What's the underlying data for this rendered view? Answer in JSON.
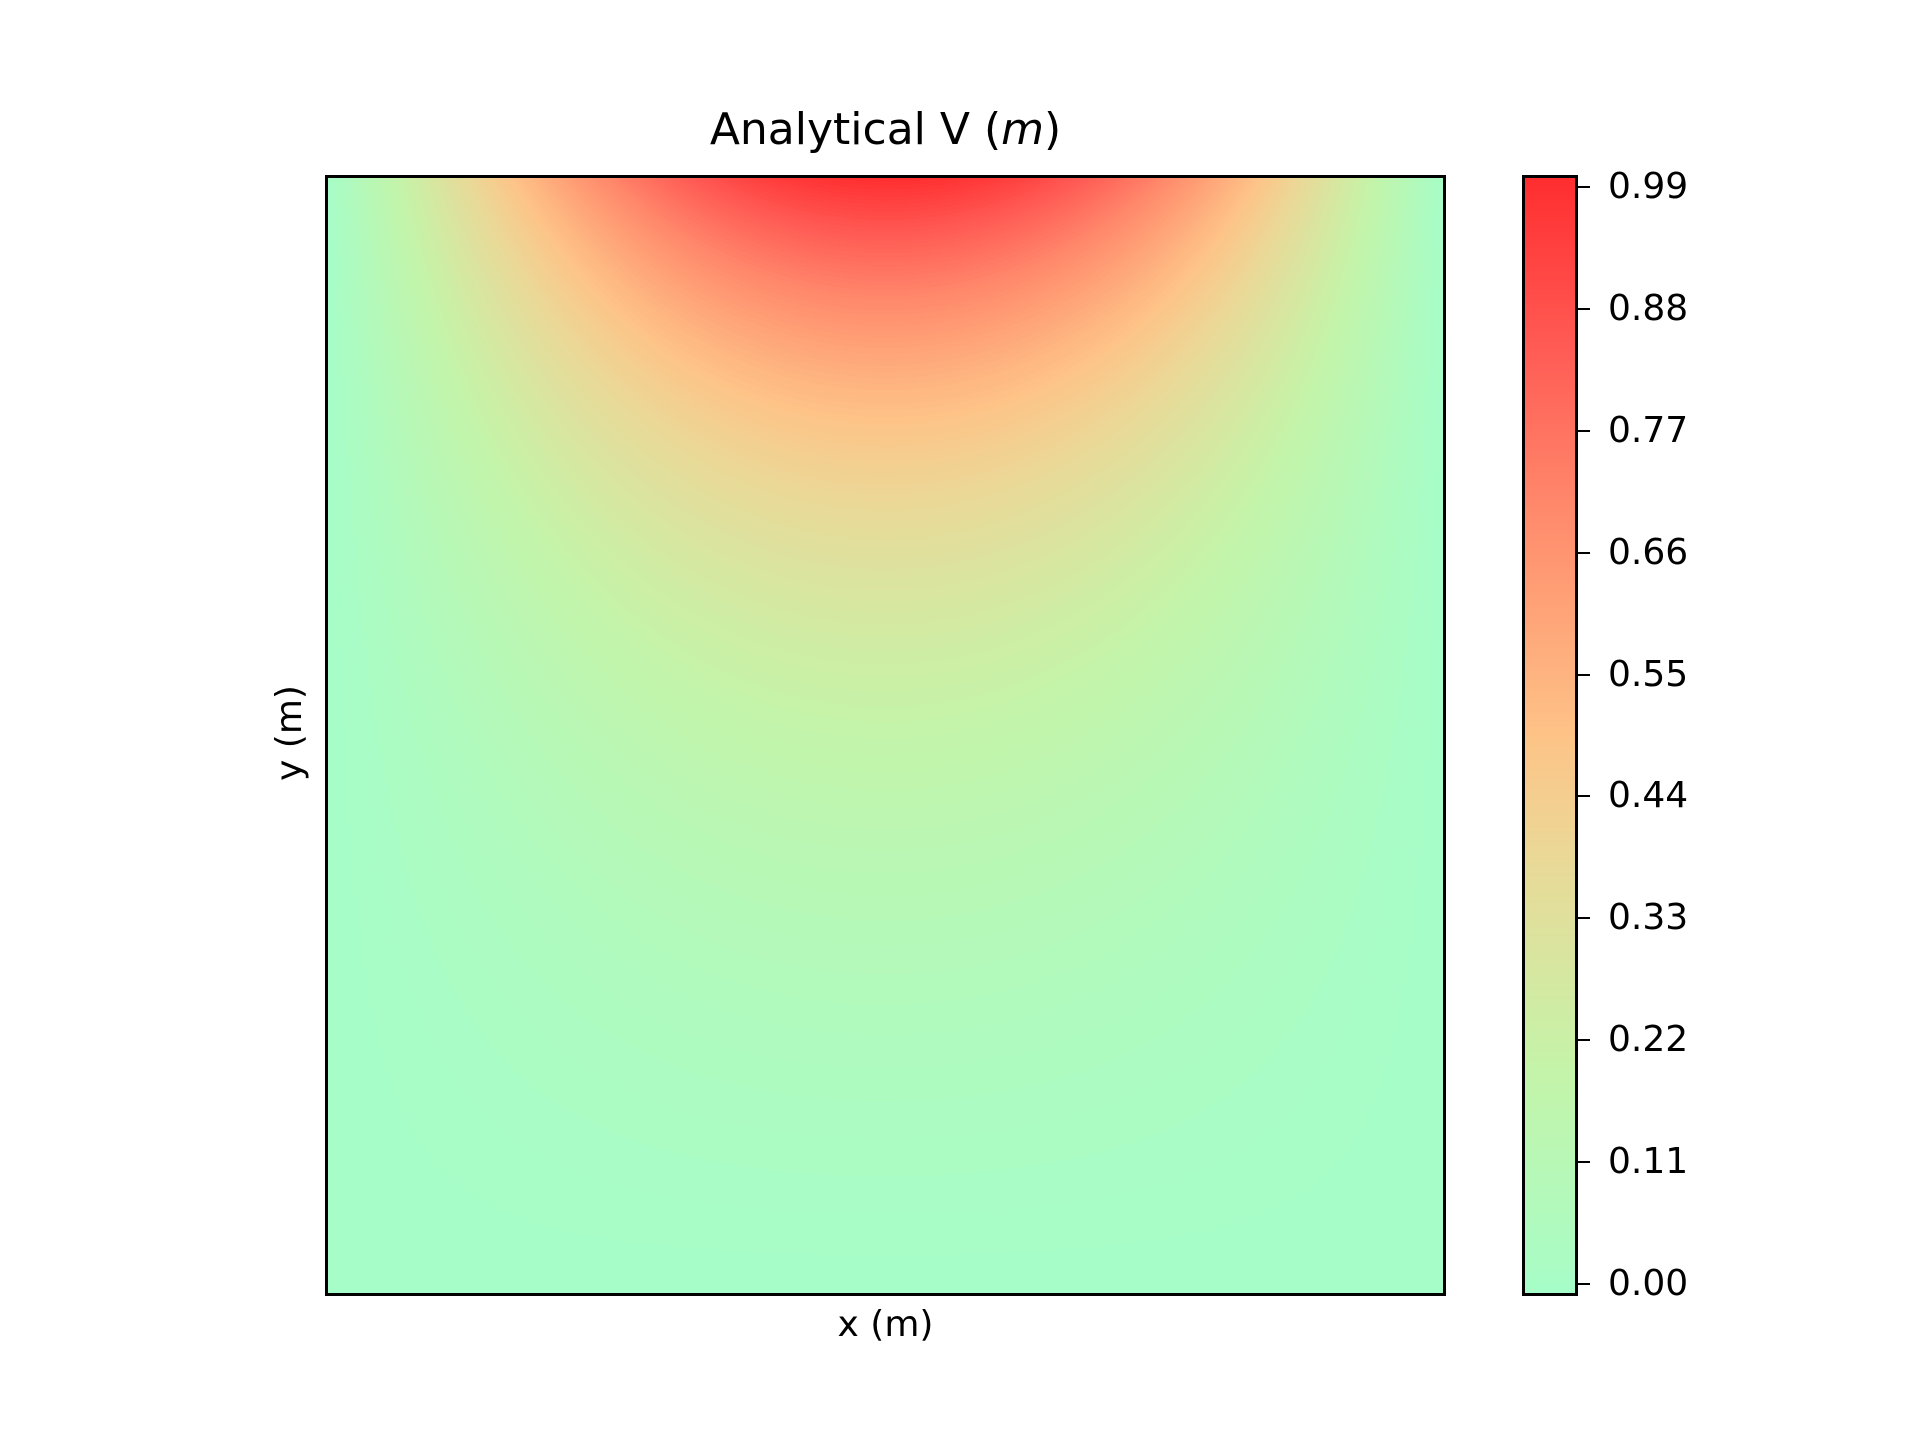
{
  "chart_data": {
    "type": "heatmap",
    "title": "Analytical V",
    "title_unit": "m",
    "xlabel": "x (m)",
    "ylabel": "y (m)",
    "x_ticks_shown": false,
    "y_ticks_shown": false,
    "grid": false,
    "field": "V(x, y) = sin(pi x) sinh(pi y) / sinh(pi), x in [0,1], y in [0,1], max ≈ 1 at top center",
    "colorbar": {
      "range": [
        0.0,
        0.99
      ],
      "ticks": [
        "0.00",
        "0.11",
        "0.22",
        "0.33",
        "0.44",
        "0.55",
        "0.66",
        "0.77",
        "0.88",
        "0.99"
      ],
      "colormap": "rainbow (upper half), alpha 0.7",
      "stops": [
        {
          "t": 0.0,
          "color": "#a6fdc8"
        },
        {
          "t": 0.2,
          "color": "#c4f4a9"
        },
        {
          "t": 0.4,
          "color": "#ecd796"
        },
        {
          "t": 0.5,
          "color": "#fec387"
        },
        {
          "t": 0.7,
          "color": "#ff8a6c"
        },
        {
          "t": 0.85,
          "color": "#ff5a54"
        },
        {
          "t": 1.0,
          "color": "#ff2d2f"
        }
      ]
    }
  }
}
